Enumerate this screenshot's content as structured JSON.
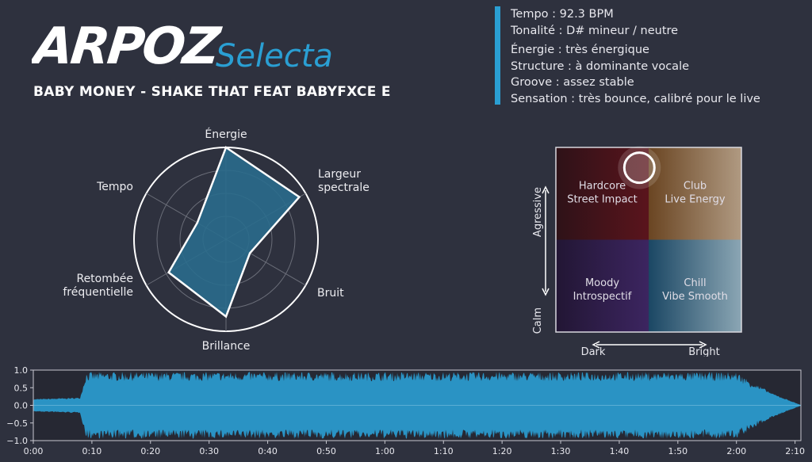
{
  "logo": {
    "main": "ARPOZ",
    "script": "Selecta",
    "accent": "#2a9fd3"
  },
  "track_title": "BABY MONEY - SHAKE THAT FEAT BABYFXCE E",
  "info": {
    "tempo": "Tempo : 92.3 BPM",
    "key": "Tonalité : D# mineur / neutre",
    "energy": "Énergie : très énergique",
    "structure": "Structure : à dominante vocale",
    "groove": "Groove : assez stable",
    "sensation": "Sensation : très bounce, calibré pour le live"
  },
  "chart_data": [
    {
      "type": "radar",
      "axes": [
        "Énergie",
        "Largeur spectrale",
        "Bruit",
        "Brillance",
        "Retombée fréquentielle",
        "Tempo"
      ],
      "values": [
        1.0,
        0.92,
        0.3,
        0.84,
        0.72,
        0.36
      ],
      "range": [
        0,
        1
      ],
      "grid_levels": [
        0.25,
        0.5,
        0.75,
        1.0
      ],
      "fill_color": "#2a6c8c",
      "line_color": "#ffffff"
    },
    {
      "type": "quadrant",
      "x_axis": {
        "low": "Dark",
        "high": "Bright"
      },
      "y_axis": {
        "low": "Calm",
        "high": "Agressive"
      },
      "quadrants": [
        {
          "label": [
            "Hardcore",
            "Street Impact"
          ],
          "position": "top-left",
          "colors": [
            "#2e1218",
            "#5a141c"
          ]
        },
        {
          "label": [
            "Club",
            "Live Energy"
          ],
          "position": "top-right",
          "colors": [
            "#6a4522",
            "#b09a82"
          ]
        },
        {
          "label": [
            "Moody",
            "Introspectif"
          ],
          "position": "bottom-left",
          "colors": [
            "#221634",
            "#3c2560"
          ]
        },
        {
          "label": [
            "Chill",
            "Vibe Smooth"
          ],
          "position": "bottom-right",
          "colors": [
            "#1b4764",
            "#8ba6b4"
          ]
        }
      ],
      "marker": {
        "x": -0.1,
        "y": 0.78
      }
    },
    {
      "type": "area",
      "title": "",
      "x_ticks": [
        "0:00",
        "0:10",
        "0:20",
        "0:30",
        "0:40",
        "0:50",
        "1:00",
        "1:10",
        "1:20",
        "1:30",
        "1:40",
        "1:50",
        "2:00",
        "2:10"
      ],
      "y_ticks": [
        "1.0",
        "0.5",
        "0.0",
        "−0.5",
        "−1.0"
      ],
      "xlim_seconds": [
        0,
        131
      ],
      "ylim": [
        -1,
        1
      ],
      "envelope": [
        [
          0,
          0.18
        ],
        [
          8,
          0.22
        ],
        [
          9,
          0.95
        ],
        [
          120,
          0.95
        ],
        [
          126,
          0.35
        ],
        [
          131,
          0.01
        ]
      ],
      "color": "#2a93c4"
    }
  ]
}
